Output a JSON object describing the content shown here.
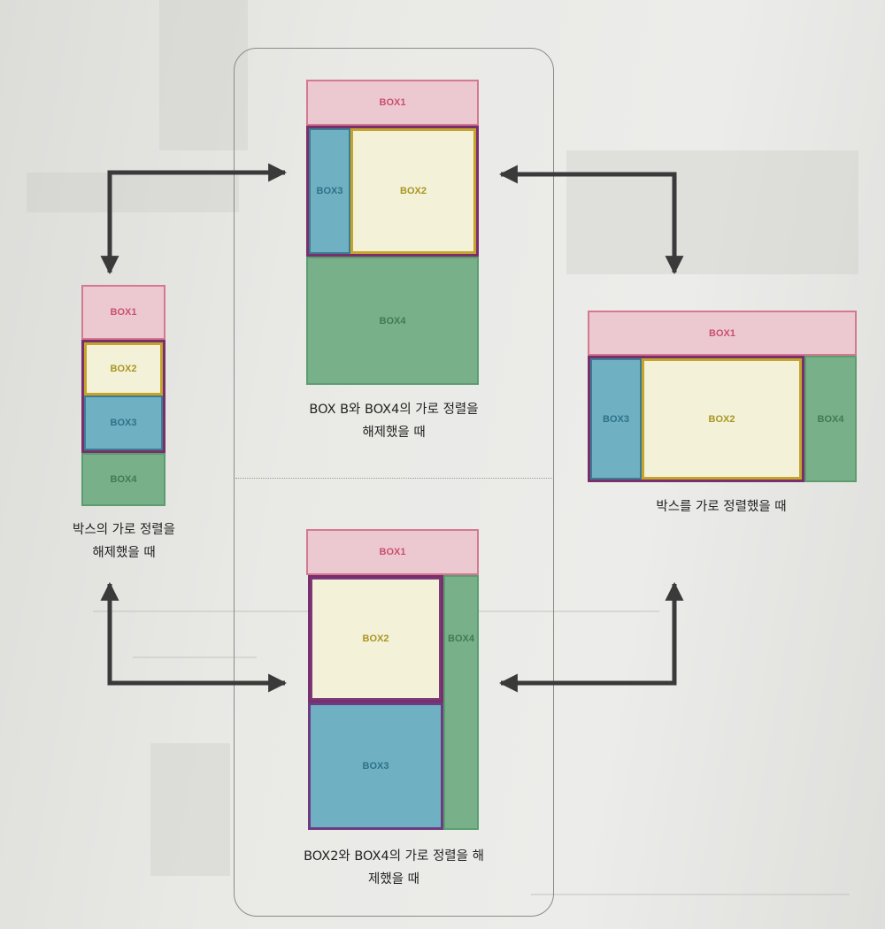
{
  "labels": {
    "box1": "BOX1",
    "box2": "BOX2",
    "box3": "BOX3",
    "box4": "BOX4"
  },
  "captions": {
    "top_center": [
      "BOX B와 BOX4의 가로 정렬을",
      "해제했을 때"
    ],
    "bottom_center": [
      "BOX2와 BOX4의 가로 정렬을 해",
      "제했을 때"
    ],
    "left": [
      "박스의 가로 정렬을",
      "해제했을 때"
    ],
    "right": [
      "박스를 가로 정렬했을 때"
    ]
  },
  "colors": {
    "box1_fill": "#ecc9d1",
    "box2_fill": "#f3f1d8",
    "box3_fill": "#6fb1c3",
    "box4_fill": "#78b08a",
    "group_border": "#7a2f6d",
    "arrow": "#3a3a3a"
  }
}
